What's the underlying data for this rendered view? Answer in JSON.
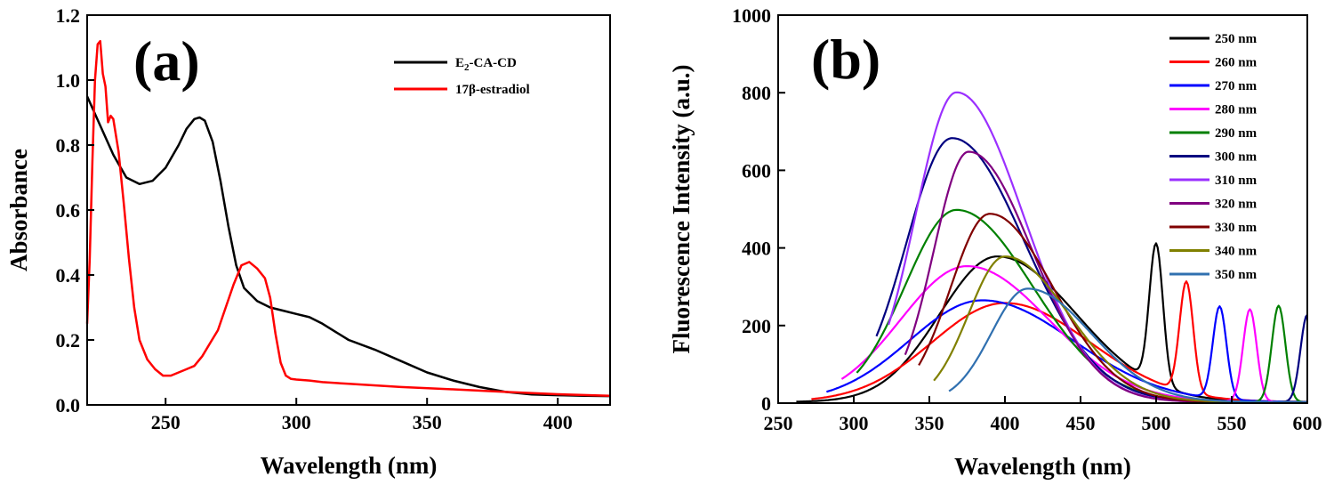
{
  "chart_data": [
    {
      "type": "line",
      "panel_label": "(a)",
      "xlabel": "Wavelength (nm)",
      "ylabel": "Absorbance",
      "xlim": [
        220,
        420
      ],
      "ylim": [
        0.0,
        1.2
      ],
      "xticks": [
        "250",
        "300",
        "350",
        "400"
      ],
      "yticks": [
        "0.0",
        "0.2",
        "0.4",
        "0.6",
        "0.8",
        "1.0",
        "1.2"
      ],
      "legend_position": "top-right",
      "series": [
        {
          "name": "E2-CA-CD",
          "legend_main": "E",
          "legend_sub": "2",
          "legend_rest": "-CA-CD",
          "color": "#000000",
          "x": [
            220,
            225,
            230,
            235,
            240,
            245,
            250,
            255,
            258,
            261,
            263,
            265,
            268,
            271,
            274,
            277,
            280,
            285,
            290,
            295,
            300,
            305,
            310,
            315,
            320,
            330,
            340,
            350,
            360,
            370,
            380,
            390,
            400,
            410,
            420
          ],
          "y": [
            0.95,
            0.86,
            0.77,
            0.7,
            0.68,
            0.69,
            0.73,
            0.8,
            0.85,
            0.88,
            0.885,
            0.875,
            0.81,
            0.69,
            0.55,
            0.43,
            0.36,
            0.32,
            0.3,
            0.29,
            0.28,
            0.27,
            0.25,
            0.225,
            0.2,
            0.17,
            0.135,
            0.1,
            0.075,
            0.055,
            0.04,
            0.032,
            0.03,
            0.028,
            0.027
          ]
        },
        {
          "name": "17β-estradiol",
          "legend_main": "17β-estradiol",
          "color": "#ff0000",
          "x": [
            220,
            221,
            222,
            223,
            224,
            225,
            226,
            227,
            228,
            229,
            230,
            232,
            234,
            236,
            238,
            240,
            243,
            246,
            249,
            252,
            255,
            258,
            261,
            264,
            267,
            270,
            273,
            276,
            279,
            282,
            285,
            288,
            290,
            292,
            294,
            296,
            298,
            300,
            305,
            310,
            320,
            340,
            360,
            380,
            400,
            420
          ],
          "y": [
            0.25,
            0.45,
            0.75,
            1.0,
            1.11,
            1.12,
            1.02,
            0.98,
            0.87,
            0.89,
            0.88,
            0.78,
            0.62,
            0.45,
            0.3,
            0.2,
            0.14,
            0.11,
            0.09,
            0.09,
            0.1,
            0.11,
            0.12,
            0.15,
            0.19,
            0.23,
            0.3,
            0.37,
            0.43,
            0.44,
            0.42,
            0.39,
            0.33,
            0.22,
            0.13,
            0.09,
            0.08,
            0.078,
            0.075,
            0.07,
            0.065,
            0.055,
            0.048,
            0.04,
            0.033,
            0.028
          ]
        }
      ]
    },
    {
      "type": "line",
      "panel_label": "(b)",
      "xlabel": "Wavelength (nm)",
      "ylabel": "Fluorescence Intensity (a.u.)",
      "xlim": [
        250,
        600
      ],
      "ylim": [
        0,
        1000
      ],
      "xticks": [
        "250",
        "300",
        "350",
        "400",
        "450",
        "500",
        "550",
        "600"
      ],
      "yticks": [
        "0",
        "200",
        "400",
        "600",
        "800",
        "1000"
      ],
      "legend_position": "top-right",
      "series": [
        {
          "name": "250 nm",
          "color": "#000000",
          "start": 262,
          "end": 600,
          "peak_x": 395,
          "peak": 375,
          "width_left": 38,
          "width_right": 52,
          "scatter_peak": 500,
          "scatter_height": 360
        },
        {
          "name": "260 nm",
          "color": "#ff0000",
          "start": 272,
          "end": 600,
          "peak_x": 400,
          "peak": 255,
          "width_left": 48,
          "width_right": 56,
          "scatter_peak": 520,
          "scatter_height": 285
        },
        {
          "name": "270 nm",
          "color": "#0000ff",
          "start": 282,
          "end": 600,
          "peak_x": 385,
          "peak": 262,
          "width_left": 48,
          "width_right": 60,
          "scatter_peak": 542,
          "scatter_height": 238
        },
        {
          "name": "280 nm",
          "color": "#ff00ff",
          "start": 292,
          "end": 600,
          "peak_x": 375,
          "peak": 350,
          "width_left": 44,
          "width_right": 54,
          "scatter_peak": 562,
          "scatter_height": 238
        },
        {
          "name": "290 nm",
          "color": "#008000",
          "start": 302,
          "end": 600,
          "peak_x": 368,
          "peak": 495,
          "width_left": 34,
          "width_right": 50,
          "scatter_peak": 581,
          "scatter_height": 248
        },
        {
          "name": "300 nm",
          "color": "#000080",
          "start": 315,
          "end": 600,
          "peak_x": 365,
          "peak": 680,
          "width_left": 30,
          "width_right": 48,
          "scatter_peak": 600,
          "scatter_height": 225
        },
        {
          "name": "310 nm",
          "color": "#9b30ff",
          "start": 323,
          "end": 600,
          "peak_x": 368,
          "peak": 798,
          "width_left": 27,
          "width_right": 44,
          "scatter_peak": 0,
          "scatter_height": 0
        },
        {
          "name": "320 nm",
          "color": "#800080",
          "start": 334,
          "end": 600,
          "peak_x": 376,
          "peak": 645,
          "width_left": 23,
          "width_right": 42,
          "scatter_peak": 0,
          "scatter_height": 0
        },
        {
          "name": "330 nm",
          "color": "#800000",
          "start": 343,
          "end": 600,
          "peak_x": 390,
          "peak": 485,
          "width_left": 26,
          "width_right": 42,
          "scatter_peak": 0,
          "scatter_height": 0
        },
        {
          "name": "340 nm",
          "color": "#808000",
          "start": 353,
          "end": 600,
          "peak_x": 400,
          "peak": 375,
          "width_left": 24,
          "width_right": 42,
          "scatter_peak": 0,
          "scatter_height": 0
        },
        {
          "name": "350 nm",
          "color": "#3070b0",
          "start": 363,
          "end": 600,
          "peak_x": 415,
          "peak": 292,
          "width_left": 24,
          "width_right": 42,
          "scatter_peak": 0,
          "scatter_height": 0
        }
      ]
    }
  ]
}
